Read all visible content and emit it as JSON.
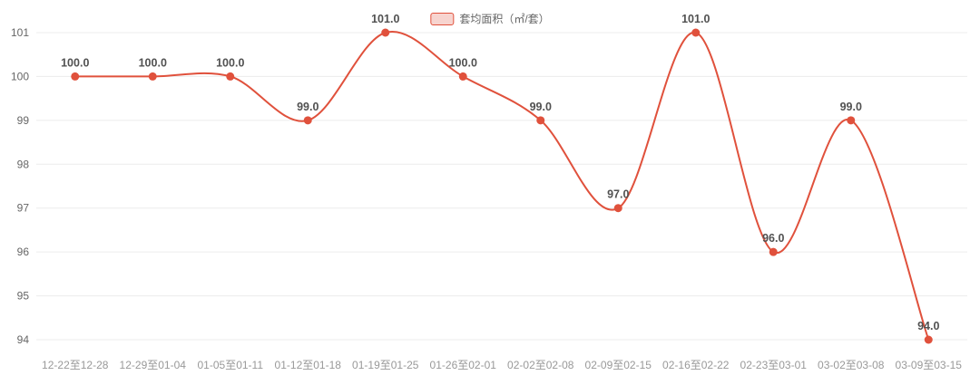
{
  "chart_data": {
    "type": "line",
    "legend": "套均面积（㎡/套）",
    "categories": [
      "12-22至12-28",
      "12-29至01-04",
      "01-05至01-11",
      "01-12至01-18",
      "01-19至01-25",
      "01-26至02-01",
      "02-02至02-08",
      "02-09至02-15",
      "02-16至02-22",
      "02-23至03-01",
      "03-02至03-08",
      "03-09至03-15"
    ],
    "series": [
      {
        "name": "套均面积（㎡/套）",
        "values": [
          100.0,
          100.0,
          100.0,
          99.0,
          101.0,
          100.0,
          99.0,
          97.0,
          101.0,
          96.0,
          99.0,
          94.0
        ]
      }
    ],
    "data_labels": [
      "100.0",
      "100.0",
      "100.0",
      "99.0",
      "101.0",
      "100.0",
      "99.0",
      "97.0",
      "101.0",
      "96.0",
      "99.0",
      "94.0"
    ],
    "ylim": [
      94,
      101
    ],
    "y_tick_step": 1,
    "y_tick_labels": [
      "94",
      "95",
      "96",
      "97",
      "98",
      "99",
      "100",
      "101"
    ],
    "grid": true,
    "legend_position": "top-center",
    "smooth": true,
    "colors": {
      "series": "#e0513c",
      "point_fill": "#e0513c",
      "data_label": "#515151",
      "axis_label": "#999999",
      "y_axis_label": "#666666",
      "grid_line": "#ececec",
      "legend_swatch_fill": "#f7d4cf",
      "legend_swatch_border": "#e0513c",
      "legend_text": "#666666"
    }
  }
}
